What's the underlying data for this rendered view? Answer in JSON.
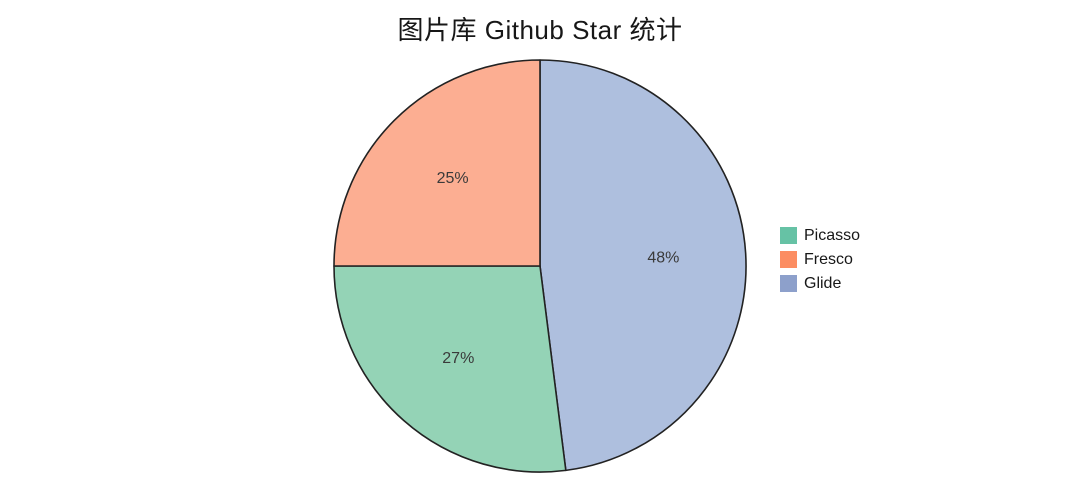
{
  "chart_data": {
    "type": "pie",
    "title": "图片库 Github Star 统计",
    "legend_position": "right",
    "start_angle": "12-oclock",
    "direction": "clockwise",
    "edge_color": "#222222",
    "pct_label_color": "#3a3a3a",
    "slices": [
      {
        "label": "Glide",
        "value_pct": 48,
        "display": "48%",
        "fill": "#aebfde"
      },
      {
        "label": "Picasso",
        "value_pct": 27,
        "display": "27%",
        "fill": "#94d3b6"
      },
      {
        "label": "Fresco",
        "value_pct": 25,
        "display": "25%",
        "fill": "#fcae92"
      }
    ],
    "legend": [
      {
        "label": "Picasso",
        "swatch": "#66c2a5"
      },
      {
        "label": "Fresco",
        "swatch": "#fc8d62"
      },
      {
        "label": "Glide",
        "swatch": "#8da0cb"
      }
    ]
  }
}
